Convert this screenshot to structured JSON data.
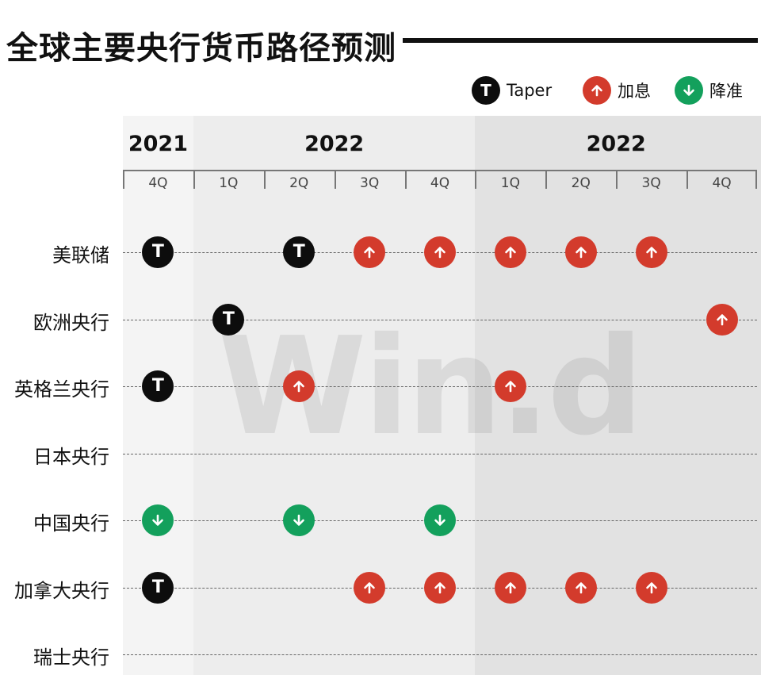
{
  "title": "全球主要央行货币路径预测",
  "watermark": "Win.d",
  "legend": [
    {
      "key": "taper",
      "icon": "taper-icon",
      "label": "Taper",
      "color": "#0d0d0d"
    },
    {
      "key": "hike",
      "icon": "arrow-up-icon",
      "label": "加息",
      "color": "#d33b2c"
    },
    {
      "key": "cut",
      "icon": "arrow-down-icon",
      "label": "降准",
      "color": "#13a05c"
    }
  ],
  "chart_data": {
    "type": "table",
    "title": "全球主要央行货币路径预测",
    "years": [
      {
        "label": "2021",
        "span": [
          0,
          0
        ],
        "shade": "#f4f4f4"
      },
      {
        "label": "2022",
        "span": [
          1,
          4
        ],
        "shade": "#ededed"
      },
      {
        "label": "2022",
        "span": [
          5,
          8
        ],
        "shade": "#e2e2e2"
      }
    ],
    "quarters": [
      "4Q",
      "1Q",
      "2Q",
      "3Q",
      "4Q",
      "1Q",
      "2Q",
      "3Q",
      "4Q"
    ],
    "rows": [
      {
        "label": "美联储",
        "events": [
          {
            "q": 0,
            "type": "taper"
          },
          {
            "q": 2,
            "type": "taper"
          },
          {
            "q": 3,
            "type": "hike"
          },
          {
            "q": 4,
            "type": "hike"
          },
          {
            "q": 5,
            "type": "hike"
          },
          {
            "q": 6,
            "type": "hike"
          },
          {
            "q": 7,
            "type": "hike"
          }
        ]
      },
      {
        "label": "欧洲央行",
        "events": [
          {
            "q": 1,
            "type": "taper"
          },
          {
            "q": 8,
            "type": "hike"
          }
        ]
      },
      {
        "label": "英格兰央行",
        "events": [
          {
            "q": 0,
            "type": "taper"
          },
          {
            "q": 2,
            "type": "hike"
          },
          {
            "q": 5,
            "type": "hike"
          }
        ]
      },
      {
        "label": "日本央行",
        "events": []
      },
      {
        "label": "中国央行",
        "events": [
          {
            "q": 0,
            "type": "cut"
          },
          {
            "q": 2,
            "type": "cut"
          },
          {
            "q": 4,
            "type": "cut"
          }
        ]
      },
      {
        "label": "加拿大央行",
        "events": [
          {
            "q": 0,
            "type": "taper"
          },
          {
            "q": 3,
            "type": "hike"
          },
          {
            "q": 4,
            "type": "hike"
          },
          {
            "q": 5,
            "type": "hike"
          },
          {
            "q": 6,
            "type": "hike"
          },
          {
            "q": 7,
            "type": "hike"
          }
        ]
      },
      {
        "label": "瑞士央行",
        "events": []
      }
    ]
  }
}
